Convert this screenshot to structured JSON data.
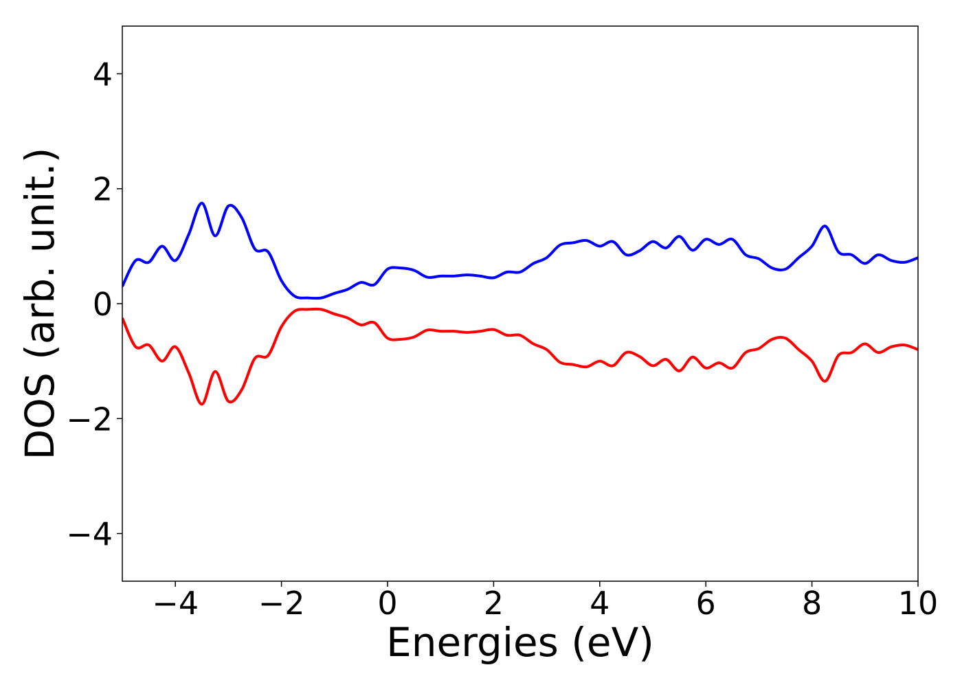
{
  "chart_data": {
    "type": "line",
    "xlabel": "Energies (eV)",
    "ylabel": "DOS (arb. unit.)",
    "x": [
      -5,
      -4.75,
      -4.5,
      -4.25,
      -4,
      -3.75,
      -3.5,
      -3.25,
      -3,
      -2.75,
      -2.5,
      -2.25,
      -2,
      -1.75,
      -1.5,
      -1.25,
      -1,
      -0.75,
      -0.5,
      -0.25,
      0,
      0.25,
      0.5,
      0.75,
      1,
      1.25,
      1.5,
      1.75,
      2,
      2.25,
      2.5,
      2.75,
      3,
      3.25,
      3.5,
      3.75,
      4,
      4.25,
      4.5,
      4.75,
      5,
      5.25,
      5.5,
      5.75,
      6,
      6.25,
      6.5,
      6.75,
      7,
      7.25,
      7.5,
      7.75,
      8,
      8.25,
      8.5,
      8.75,
      9,
      9.25,
      9.5,
      9.75,
      10
    ],
    "series": [
      {
        "color": "#0000ff",
        "values": [
          0.3,
          0.75,
          0.72,
          1.0,
          0.75,
          1.2,
          1.75,
          1.18,
          1.7,
          1.5,
          0.95,
          0.9,
          0.4,
          0.13,
          0.1,
          0.1,
          0.18,
          0.25,
          0.37,
          0.33,
          0.6,
          0.62,
          0.58,
          0.46,
          0.48,
          0.48,
          0.5,
          0.48,
          0.45,
          0.55,
          0.55,
          0.7,
          0.8,
          1.02,
          1.06,
          1.1,
          1.0,
          1.08,
          0.85,
          0.92,
          1.08,
          0.97,
          1.17,
          0.93,
          1.12,
          1.03,
          1.12,
          0.85,
          0.78,
          0.62,
          0.6,
          0.8,
          1.0,
          1.35,
          0.9,
          0.85,
          0.7,
          0.85,
          0.75,
          0.72,
          0.8
        ]
      },
      {
        "color": "#ff0000",
        "values": [
          -0.25,
          -0.75,
          -0.72,
          -1.0,
          -0.75,
          -1.2,
          -1.75,
          -1.18,
          -1.7,
          -1.5,
          -0.95,
          -0.9,
          -0.4,
          -0.13,
          -0.1,
          -0.1,
          -0.18,
          -0.25,
          -0.37,
          -0.33,
          -0.6,
          -0.62,
          -0.58,
          -0.46,
          -0.48,
          -0.48,
          -0.5,
          -0.48,
          -0.45,
          -0.55,
          -0.55,
          -0.7,
          -0.8,
          -1.02,
          -1.06,
          -1.1,
          -1.0,
          -1.08,
          -0.85,
          -0.92,
          -1.08,
          -0.97,
          -1.17,
          -0.93,
          -1.12,
          -1.03,
          -1.12,
          -0.85,
          -0.78,
          -0.62,
          -0.6,
          -0.8,
          -1.0,
          -1.35,
          -0.9,
          -0.85,
          -0.7,
          -0.85,
          -0.75,
          -0.72,
          -0.8
        ]
      }
    ],
    "xlim": [
      -5,
      10
    ],
    "ylim": [
      -4.83,
      4.83
    ],
    "xticks": [
      {
        "value": -4,
        "label": "−4"
      },
      {
        "value": -2,
        "label": "−2"
      },
      0,
      2,
      4,
      6,
      8,
      10
    ],
    "yticks": [
      {
        "value": -4,
        "label": "−4"
      },
      {
        "value": -2,
        "label": "−2"
      },
      0,
      2,
      4
    ],
    "grid": false
  }
}
